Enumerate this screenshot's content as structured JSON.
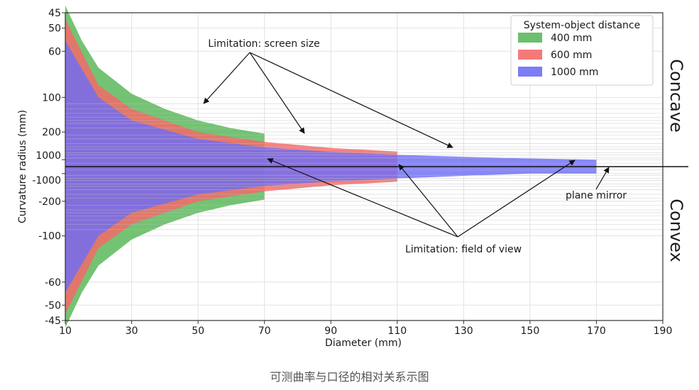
{
  "chart_data": {
    "type": "area",
    "xlabel": "Diameter (mm)",
    "ylabel": "Curvature radius (mm)",
    "xlim": [
      10,
      190
    ],
    "x_ticks": [
      10,
      30,
      50,
      70,
      90,
      110,
      130,
      150,
      170,
      190
    ],
    "y_scale": "reciprocal",
    "y_ticks": [
      "45",
      "50",
      "60",
      "100",
      "200",
      "1000",
      "-1000",
      "-200",
      "-100",
      "-60",
      "-50",
      "-45"
    ],
    "grid": true,
    "legend": {
      "title": "System-object distance",
      "placement": "top-right"
    },
    "series": [
      {
        "name": "400 mm",
        "color": "#5cb85c",
        "x": [
          10,
          15,
          20,
          30,
          40,
          50,
          60,
          70
        ],
        "concave_min_radius": [
          43,
          55,
          70,
          95,
          120,
          150,
          180,
          210
        ],
        "convex_min_radius": [
          -43,
          -55,
          -70,
          -95,
          -120,
          -150,
          -180,
          -210
        ]
      },
      {
        "name": "600 mm",
        "color": "#f46a6a",
        "x": [
          10,
          20,
          30,
          50,
          70,
          90,
          110
        ],
        "concave_min_radius": [
          47,
          85,
          120,
          200,
          280,
          370,
          460
        ],
        "convex_min_radius": [
          -47,
          -85,
          -120,
          -200,
          -280,
          -370,
          -460
        ]
      },
      {
        "name": "1000 mm",
        "color": "#6e6ef5",
        "x": [
          10,
          20,
          30,
          50,
          70,
          90,
          110,
          130,
          150,
          170
        ],
        "concave_min_radius": [
          55,
          100,
          150,
          250,
          360,
          470,
          580,
          700,
          850,
          1000
        ],
        "convex_min_radius": [
          -55,
          -100,
          -150,
          -250,
          -360,
          -470,
          -580,
          -750,
          -1000,
          -1000
        ]
      }
    ],
    "annotations": [
      {
        "text": "Limitation: screen size"
      },
      {
        "text": "Limitation: field of view"
      },
      {
        "text": "plane mirror"
      }
    ],
    "side_labels": {
      "top": "Concave",
      "bottom": "Convex"
    }
  },
  "caption": "可测曲率与口径的相对关系示图"
}
